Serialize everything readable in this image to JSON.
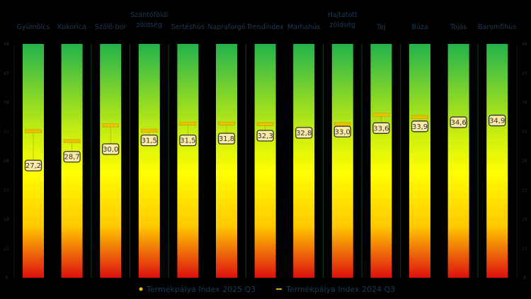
{
  "chart_data": {
    "type": "bar",
    "title": "",
    "xlabel": "",
    "ylabel": "",
    "ylim": [
      8,
      48
    ],
    "yticks": [
      8,
      13,
      18,
      23,
      28,
      33,
      38,
      43,
      48
    ],
    "tick_labels": [
      "8",
      "13",
      "18",
      "23",
      "28",
      "33",
      "38",
      "43",
      "48"
    ],
    "grid": false,
    "legend_placement": "bottom",
    "categories": [
      [
        "Gyümölcs"
      ],
      [
        "Kukorica"
      ],
      [
        "Szőlő-bor"
      ],
      [
        "Szántóföldi",
        "zöldség"
      ],
      [
        "Sertéshús"
      ],
      [
        "Napraforgó"
      ],
      [
        "Trendindex"
      ],
      [
        "Marhahús"
      ],
      [
        "Hajtatott",
        "zöldség"
      ],
      [
        "Tej"
      ],
      [
        "Búza"
      ],
      [
        "Tojás"
      ],
      [
        "Baromfihús"
      ]
    ],
    "series": [
      {
        "name": "Termékpálya Index 2025 Q3",
        "marker": "dot",
        "color": "#f2c200",
        "values": [
          27.2,
          28.7,
          30.0,
          31.5,
          31.5,
          31.8,
          32.3,
          32.8,
          33.0,
          33.6,
          33.9,
          34.6,
          34.9
        ],
        "labels": [
          "27,2",
          "28,7",
          "30,0",
          "31,5",
          "31,5",
          "31,8",
          "32,3",
          "32,8",
          "33,0",
          "33,6",
          "33,9",
          "34,6",
          "34,9"
        ]
      },
      {
        "name": "Termékpálya Index 2024 Q3",
        "marker": "dash",
        "color": "#d9b400",
        "values": [
          33.1,
          31.4,
          34.1,
          33.2,
          34.4,
          34.4,
          34.3,
          null,
          34.3,
          35.9,
          35.5,
          null,
          null
        ]
      }
    ],
    "bar_gradient": [
      "#22b24c",
      "#ffff00",
      "#ffcc00",
      "#e01010"
    ]
  }
}
